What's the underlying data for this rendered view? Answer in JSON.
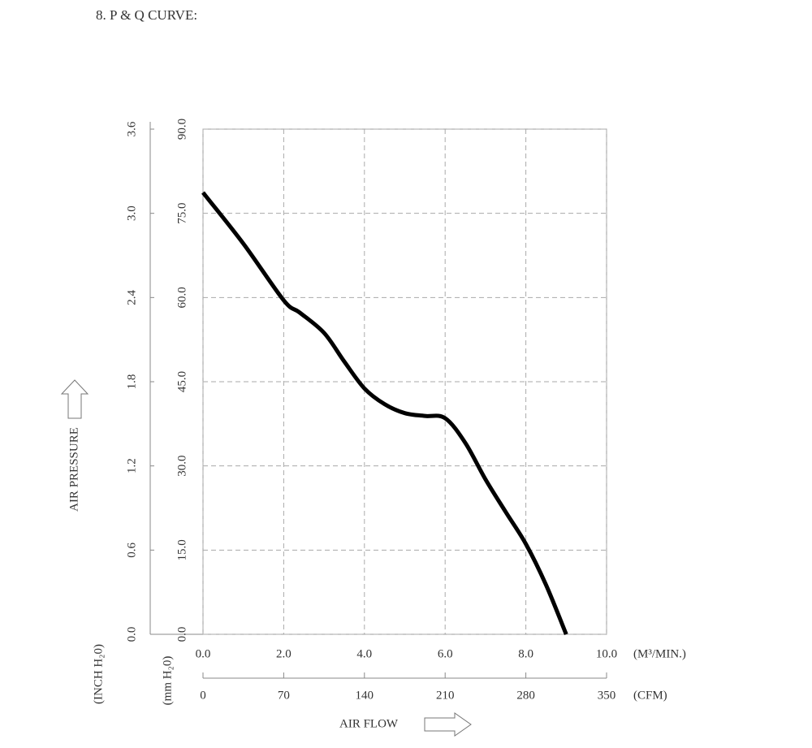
{
  "chart_data": {
    "type": "line",
    "title": "8. P & Q CURVE:",
    "y_label": "AIR PRESSURE",
    "x_label": "AIR FLOW",
    "x_unit": "(M³/MIN.)",
    "x2_unit": "(CFM)",
    "y_unit": "(mm H₂0)",
    "y2_unit": "(INCH H₂0)",
    "x": [
      0.0,
      1.0,
      2.0,
      2.4,
      3.0,
      3.5,
      4.0,
      4.5,
      5.0,
      5.5,
      6.0,
      6.5,
      7.0,
      7.5,
      8.0,
      8.5,
      9.0
    ],
    "values": [
      78.7,
      69.6,
      59.5,
      57.3,
      53.7,
      48.6,
      43.8,
      41.0,
      39.4,
      38.9,
      38.5,
      34.1,
      27.6,
      21.8,
      16.1,
      8.8,
      0
    ],
    "color": "#000000",
    "xlim": [
      0,
      10
    ],
    "xticks": [
      {
        "value": 0,
        "label": "0.0"
      },
      {
        "value": 2,
        "label": "2.0"
      },
      {
        "value": 4,
        "label": "4.0"
      },
      {
        "value": 6,
        "label": "6.0"
      },
      {
        "value": 8,
        "label": "8.0"
      },
      {
        "value": 10,
        "label": "10.0"
      }
    ],
    "x2lim": [
      0,
      350
    ],
    "x2ticks": [
      0,
      70,
      140,
      210,
      280,
      350
    ],
    "ylim": [
      0,
      90
    ],
    "yticks": [
      {
        "value": 0,
        "label": "0.0"
      },
      {
        "value": 15,
        "label": "15.0"
      },
      {
        "value": 30,
        "label": "30.0"
      },
      {
        "value": 45,
        "label": "45.0"
      },
      {
        "value": 60,
        "label": "60.0"
      },
      {
        "value": 75,
        "label": "75.0"
      },
      {
        "value": 90,
        "label": "90.0"
      }
    ],
    "y2lim": [
      0,
      3.6
    ],
    "y2ticks": [
      {
        "value": 0,
        "label": "0.0"
      },
      0.6,
      1.2,
      1.8,
      2.4,
      {
        "value": 3,
        "label": "3.0"
      },
      3.6
    ],
    "grid": true
  }
}
